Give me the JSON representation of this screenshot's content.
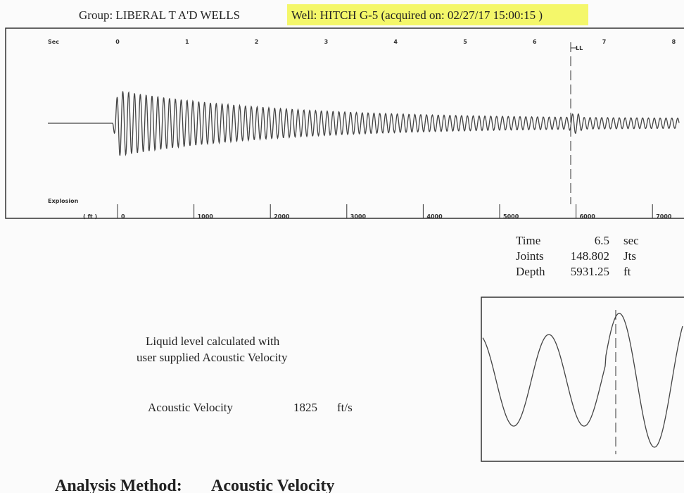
{
  "header": {
    "group": "Group: LIBERAL T A'D WELLS",
    "well": "Well: HITCH G-5 (acquired on: 02/27/17 15:00:15 )"
  },
  "chart": {
    "time_label": "Sec",
    "time_ticks": [
      "0",
      "1",
      "2",
      "3",
      "4",
      "5",
      "6",
      "7",
      "8"
    ],
    "marker": "LL",
    "explosion_label": "Explosion",
    "depth_label": "( ft )",
    "depth_ticks": [
      "0",
      "1000",
      "2000",
      "3000",
      "4000",
      "5000",
      "6000",
      "7000"
    ]
  },
  "readout": {
    "rows": [
      [
        "Time",
        "6.5",
        "sec"
      ],
      [
        "Joints",
        "148.802",
        "Jts"
      ],
      [
        "Depth",
        "5931.25",
        "ft"
      ]
    ]
  },
  "note": [
    "Liquid level calculated with",
    "user supplied Acoustic Velocity"
  ],
  "velocity": {
    "label": "Acoustic Velocity",
    "value": "1825",
    "unit": "ft/s"
  },
  "footer": {
    "label": "Analysis Method:",
    "method": "Acoustic Velocity"
  }
}
